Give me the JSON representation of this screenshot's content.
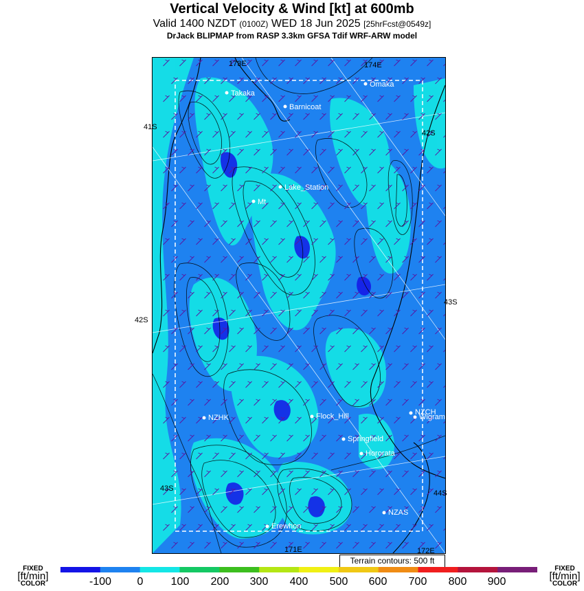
{
  "title": "Vertical Velocity & Wind [kt] at 600mb",
  "subtitle": {
    "valid": "Valid 1400 NZDT",
    "utc": "(0100Z)",
    "date": "WED 18 Jun 2025",
    "forecast": "[25hrFcst@0549z]"
  },
  "model_line": "DrJack BLIPMAP from RASP 3.3km GFSA Tdif WRF-ARW model",
  "sites": [
    {
      "name": "Takaka"
    },
    {
      "name": "Omaka"
    },
    {
      "name": "Barnicoat"
    },
    {
      "name": "Lake_Station"
    },
    {
      "name": "Mt"
    },
    {
      "name": "NZHK"
    },
    {
      "name": "Flock_Hill"
    },
    {
      "name": "NZCH"
    },
    {
      "name": "Wigram"
    },
    {
      "name": "Springfield"
    },
    {
      "name": "Hororata"
    },
    {
      "name": "NZAS"
    },
    {
      "name": "Erewhon"
    }
  ],
  "grid_labels": [
    "173E",
    "174E",
    "41S",
    "42S",
    "43S",
    "42S",
    "43S",
    "44S",
    "171E",
    "172E"
  ],
  "terrain_note": "Terrain contours: 500 ft",
  "colorbar": {
    "left_label": [
      "FIXED",
      "[ft/min]",
      "COLOR"
    ],
    "right_label": [
      "FIXED",
      "[ft/min]",
      "COLOR"
    ],
    "ticks": [
      "-100",
      "0",
      "100",
      "200",
      "300",
      "400",
      "500",
      "600",
      "700",
      "800",
      "900"
    ],
    "colors": [
      "#1414e6",
      "#1e82f0",
      "#14e6e6",
      "#14c864",
      "#3cbe1e",
      "#b4e614",
      "#f0f014",
      "#f0c814",
      "#f08c14",
      "#f01e1e",
      "#b4143c",
      "#781e78"
    ]
  },
  "map_colors": {
    "base": "#1e82f0",
    "up": "#14e6e6",
    "down": "#1414e6",
    "contour": "#000000",
    "wind": "#5a14a0"
  }
}
